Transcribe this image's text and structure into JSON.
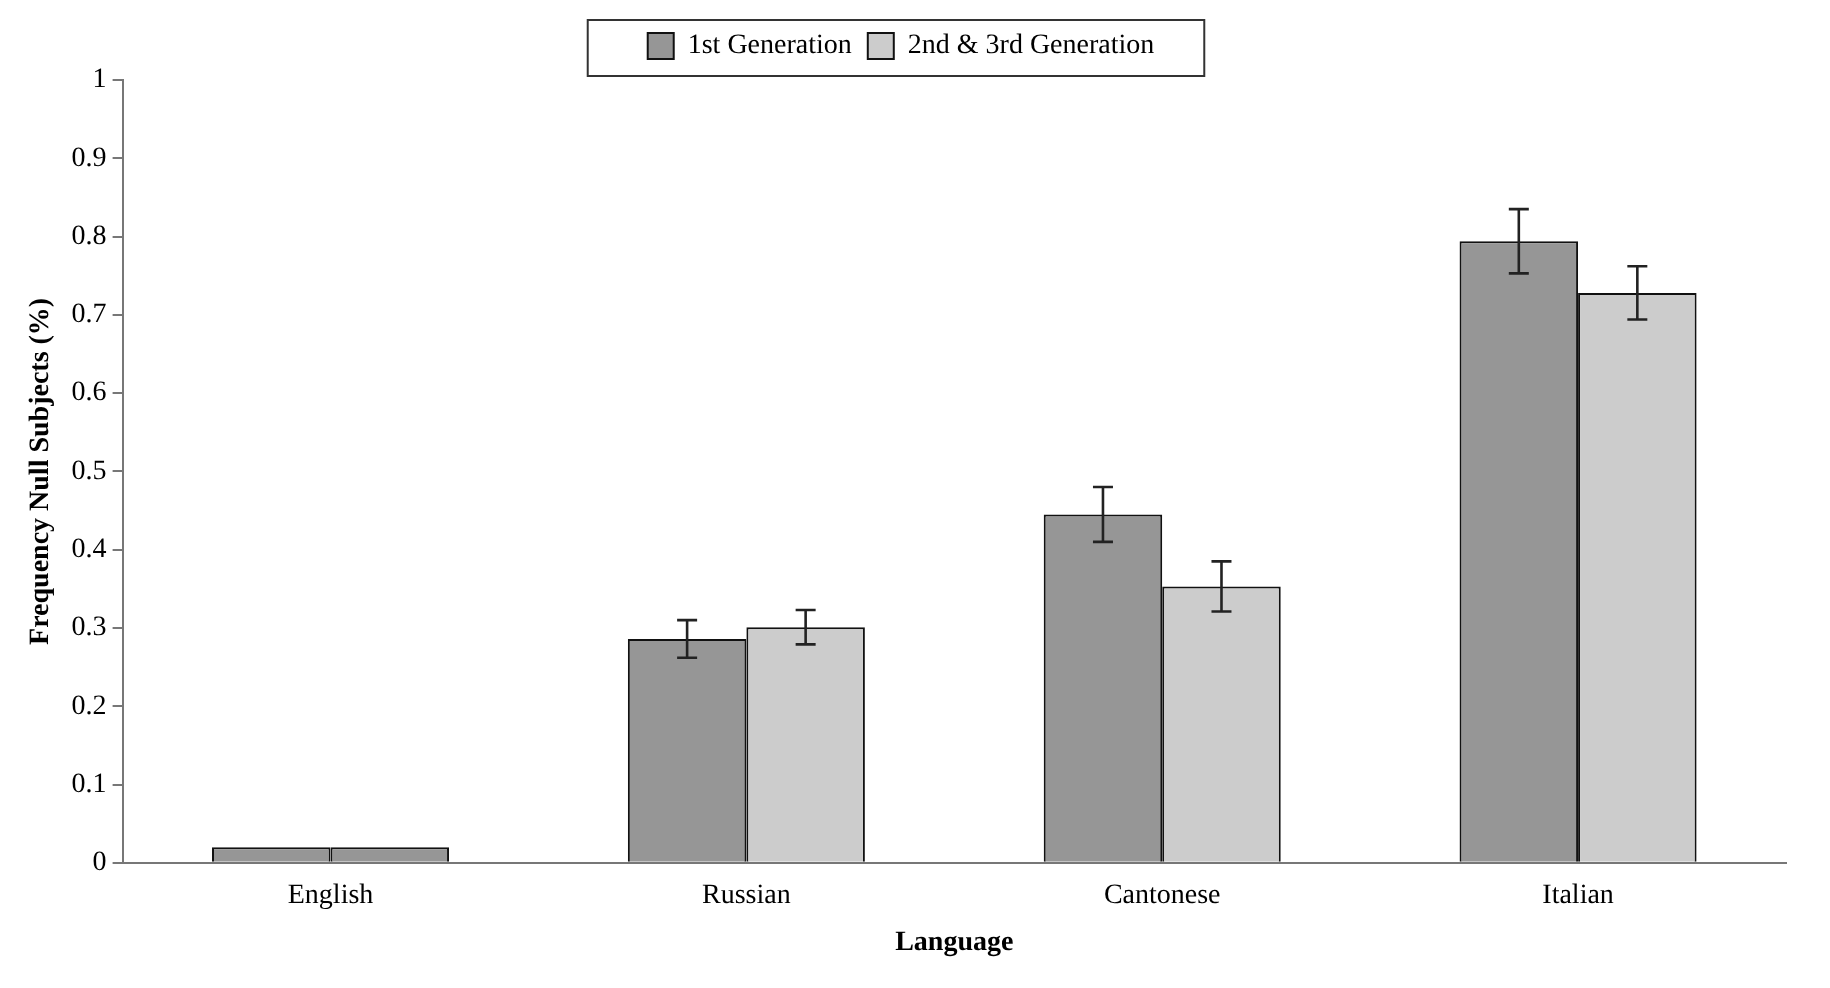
{
  "chart_data": {
    "type": "bar",
    "xlabel": "Language",
    "ylabel": "Frequency Null Subjects (%)",
    "categories": [
      "English",
      "Russian",
      "Cantonese",
      "Italian"
    ],
    "series": [
      {
        "name": "1st Generation",
        "color": "#969696",
        "values": [
          0.02,
          0.286,
          0.445,
          0.794
        ],
        "errors": [
          null,
          0.024,
          0.035,
          0.041
        ]
      },
      {
        "name": "2nd & 3rd Generation",
        "color": "#cccccc",
        "colors": [
          "#969696",
          "#cccccc",
          "#cccccc",
          "#cccccc"
        ],
        "values": [
          0.02,
          0.301,
          0.353,
          0.728
        ],
        "errors": [
          null,
          0.022,
          0.032,
          0.034
        ]
      }
    ],
    "ylim": [
      0,
      1
    ],
    "yticks": [
      0,
      0.1,
      0.2,
      0.3,
      0.4,
      0.5,
      0.6,
      0.7,
      0.8,
      0.9,
      1
    ],
    "grid": false,
    "legend": "top"
  }
}
